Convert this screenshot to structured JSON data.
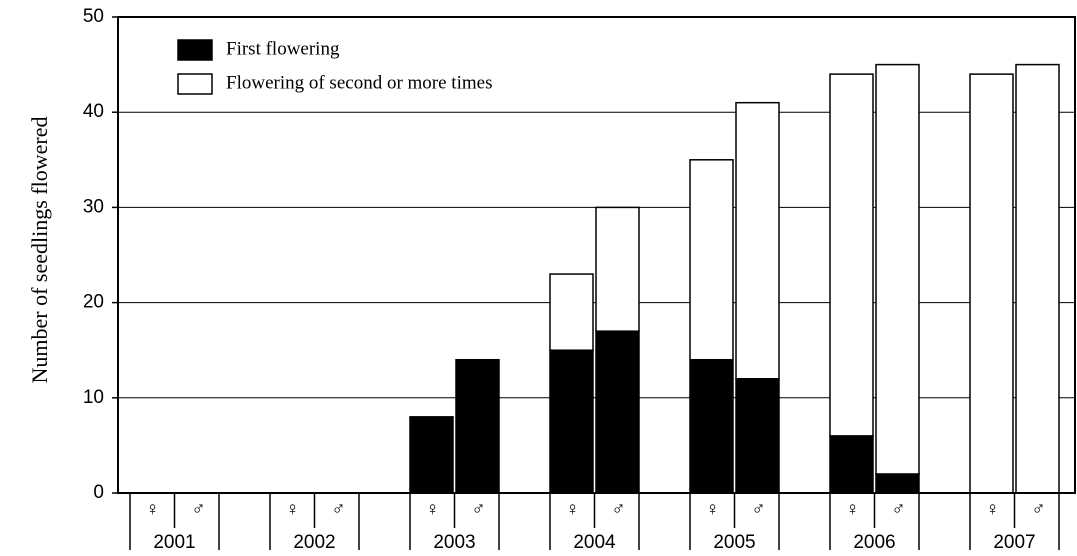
{
  "chart_data": {
    "type": "stacked_bar",
    "y_label": "Number of seedlings flowered",
    "groups": [
      "2001",
      "2002",
      "2003",
      "2004",
      "2005",
      "2006",
      "2007"
    ],
    "subgroups": [
      "♀",
      "♂"
    ],
    "series": [
      {
        "name": "First flowering",
        "color": "#000000",
        "values": [
          0,
          0,
          0,
          0,
          8,
          14,
          15,
          17,
          14,
          12,
          6,
          2,
          0,
          0
        ]
      },
      {
        "name": "Flowering of second or more times",
        "color": "#ffffff",
        "values": [
          0,
          0,
          0,
          0,
          0,
          0,
          8,
          13,
          21,
          29,
          38,
          43,
          44,
          45
        ]
      }
    ],
    "ylim": [
      0,
      50
    ],
    "yticks": [
      0,
      10,
      20,
      30,
      40,
      50
    ],
    "grid": true
  }
}
